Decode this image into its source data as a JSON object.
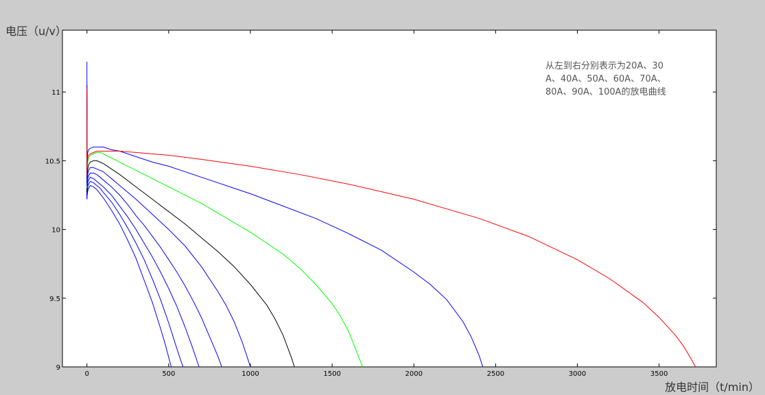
{
  "chart_data": {
    "type": "line",
    "title": "",
    "ylabel": "电压（u/v）",
    "xlabel": "放电时间（t/min）",
    "xlim": [
      -150,
      3850
    ],
    "ylim": [
      9,
      11.45
    ],
    "xticks": [
      0,
      500,
      1000,
      1500,
      2000,
      2500,
      3000,
      3500
    ],
    "yticks": [
      9,
      9.5,
      10,
      10.5,
      11
    ],
    "ytick_labels": [
      "9",
      "9.5",
      "10",
      "10.5",
      "11"
    ],
    "grid": false,
    "annotation": [
      "从左到右分别表示为20A、30",
      "A、40A、50A、60A、70A、",
      "80A、90A、100A的放电曲线"
    ],
    "series": [
      {
        "color": "#0000ff",
        "start": 10.22,
        "spike": 10.85,
        "x": [
          2,
          5,
          10,
          20,
          40,
          60,
          80,
          100,
          150,
          200,
          250,
          300,
          350,
          400,
          450,
          480,
          500,
          520,
          540
        ],
        "y": [
          10.25,
          10.28,
          10.3,
          10.32,
          10.31,
          10.29,
          10.26,
          10.23,
          10.14,
          10.04,
          9.92,
          9.79,
          9.63,
          9.47,
          9.28,
          9.16,
          9.07,
          8.98,
          8.85
        ]
      },
      {
        "color": "#0000ff",
        "start": 10.22,
        "spike": 10.9,
        "x": [
          2,
          5,
          10,
          20,
          40,
          60,
          80,
          100,
          150,
          200,
          250,
          300,
          350,
          400,
          450,
          500,
          540,
          570,
          600,
          620
        ],
        "y": [
          10.27,
          10.31,
          10.33,
          10.35,
          10.34,
          10.32,
          10.3,
          10.27,
          10.2,
          10.11,
          10.01,
          9.9,
          9.78,
          9.64,
          9.49,
          9.32,
          9.17,
          9.06,
          8.96,
          8.85
        ]
      },
      {
        "color": "#0000ff",
        "start": 10.23,
        "spike": 10.95,
        "x": [
          2,
          5,
          10,
          20,
          40,
          60,
          80,
          100,
          150,
          200,
          250,
          300,
          350,
          400,
          450,
          500,
          550,
          600,
          640,
          680,
          710,
          730
        ],
        "y": [
          10.3,
          10.34,
          10.36,
          10.38,
          10.37,
          10.35,
          10.33,
          10.31,
          10.25,
          10.17,
          10.09,
          10.0,
          9.9,
          9.8,
          9.69,
          9.57,
          9.44,
          9.29,
          9.16,
          9.02,
          8.92,
          8.85
        ]
      },
      {
        "color": "#0000ff",
        "start": 10.24,
        "spike": 11.0,
        "x": [
          2,
          5,
          10,
          20,
          40,
          60,
          80,
          100,
          150,
          200,
          250,
          300,
          350,
          400,
          450,
          500,
          550,
          600,
          650,
          700,
          750,
          800,
          840,
          860
        ],
        "y": [
          10.33,
          10.37,
          10.39,
          10.41,
          10.41,
          10.4,
          10.38,
          10.36,
          10.31,
          10.25,
          10.18,
          10.1,
          10.03,
          9.95,
          9.87,
          9.78,
          9.69,
          9.59,
          9.48,
          9.36,
          9.22,
          9.08,
          8.95,
          8.85
        ]
      },
      {
        "color": "#0000ff",
        "start": 10.25,
        "spike": 11.05,
        "x": [
          2,
          5,
          10,
          20,
          40,
          60,
          80,
          100,
          150,
          200,
          300,
          400,
          500,
          600,
          700,
          800,
          850,
          900,
          950,
          1000,
          1030,
          1045
        ],
        "y": [
          10.36,
          10.4,
          10.43,
          10.45,
          10.45,
          10.44,
          10.43,
          10.42,
          10.37,
          10.32,
          10.22,
          10.11,
          10.0,
          9.88,
          9.73,
          9.55,
          9.45,
          9.33,
          9.18,
          9.0,
          8.9,
          8.85
        ]
      },
      {
        "color": "#000000",
        "start": 10.27,
        "spike": 10.8,
        "x": [
          2,
          5,
          10,
          20,
          40,
          60,
          80,
          100,
          150,
          200,
          300,
          400,
          500,
          600,
          700,
          800,
          900,
          1000,
          1100,
          1150,
          1200,
          1250,
          1280,
          1300,
          1310
        ],
        "y": [
          10.4,
          10.44,
          10.47,
          10.49,
          10.5,
          10.5,
          10.49,
          10.48,
          10.44,
          10.4,
          10.31,
          10.22,
          10.13,
          10.04,
          9.94,
          9.84,
          9.73,
          9.6,
          9.45,
          9.35,
          9.23,
          9.07,
          8.96,
          8.88,
          8.85
        ]
      },
      {
        "color": "#00ff00",
        "start": 10.3,
        "spike": 10.8,
        "x": [
          2,
          5,
          10,
          20,
          40,
          60,
          80,
          100,
          150,
          200,
          300,
          400,
          500,
          600,
          700,
          800,
          900,
          1000,
          1100,
          1200,
          1300,
          1400,
          1500,
          1550,
          1600,
          1650,
          1700,
          1720
        ],
        "y": [
          10.45,
          10.49,
          10.52,
          10.54,
          10.55,
          10.56,
          10.56,
          10.55,
          10.52,
          10.49,
          10.43,
          10.37,
          10.31,
          10.25,
          10.19,
          10.12,
          10.05,
          9.98,
          9.9,
          9.82,
          9.72,
          9.6,
          9.46,
          9.37,
          9.26,
          9.11,
          8.96,
          8.85
        ]
      },
      {
        "color": "#0000ff",
        "start": 10.32,
        "spike": 11.22,
        "x": [
          2,
          5,
          10,
          20,
          40,
          60,
          80,
          100,
          150,
          200,
          300,
          400,
          500,
          600,
          700,
          800,
          900,
          1000,
          1200,
          1400,
          1600,
          1800,
          2000,
          2100,
          2200,
          2300,
          2350,
          2400,
          2440,
          2460
        ],
        "y": [
          10.52,
          10.56,
          10.58,
          10.59,
          10.6,
          10.6,
          10.6,
          10.6,
          10.58,
          10.57,
          10.53,
          10.49,
          10.46,
          10.42,
          10.38,
          10.34,
          10.3,
          10.26,
          10.17,
          10.08,
          9.97,
          9.85,
          9.69,
          9.6,
          9.49,
          9.33,
          9.22,
          9.08,
          8.93,
          8.85
        ]
      },
      {
        "color": "#ff0000",
        "start": 10.4,
        "spike": 11.03,
        "x": [
          2,
          5,
          10,
          20,
          40,
          60,
          80,
          100,
          150,
          200,
          300,
          400,
          500,
          700,
          1000,
          1300,
          1600,
          2000,
          2400,
          2700,
          3000,
          3200,
          3400,
          3500,
          3600,
          3650,
          3700,
          3750,
          3790
        ],
        "y": [
          10.48,
          10.52,
          10.54,
          10.55,
          10.56,
          10.57,
          10.57,
          10.57,
          10.57,
          10.57,
          10.56,
          10.55,
          10.54,
          10.51,
          10.46,
          10.4,
          10.33,
          10.22,
          10.08,
          9.95,
          9.78,
          9.64,
          9.47,
          9.36,
          9.23,
          9.15,
          9.05,
          8.94,
          8.85
        ]
      }
    ]
  }
}
